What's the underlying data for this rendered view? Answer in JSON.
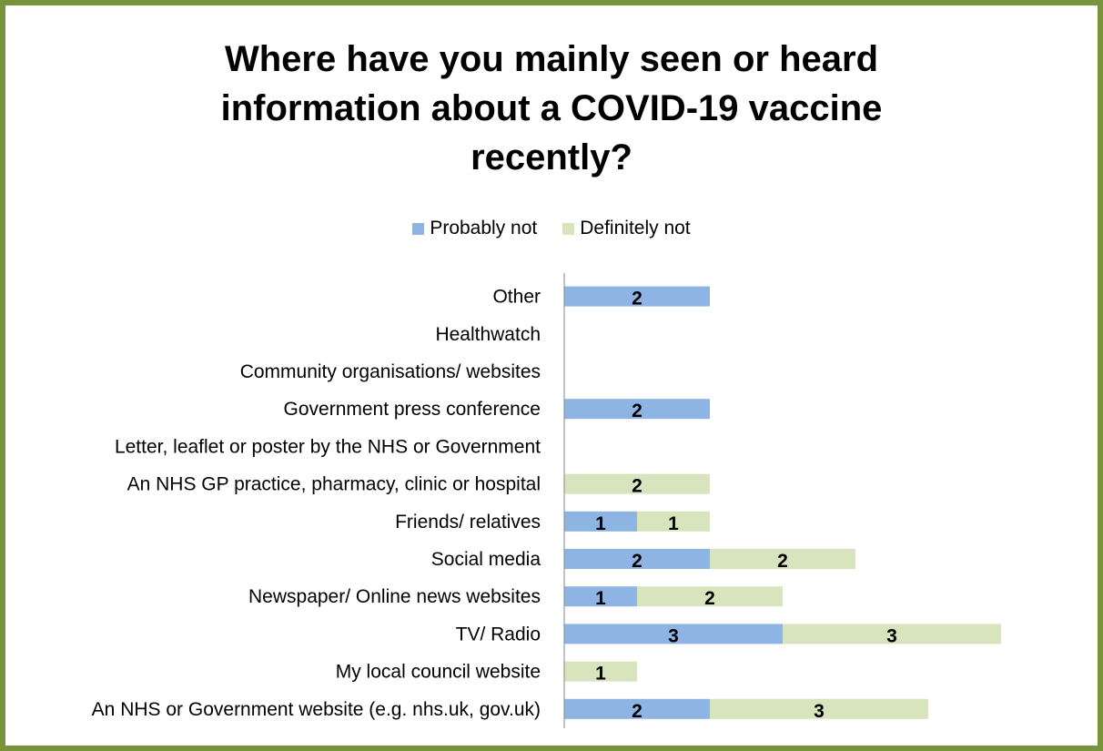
{
  "chart_data": {
    "type": "bar",
    "orientation": "horizontal",
    "stacked": true,
    "title_lines": [
      "Where have you mainly seen or heard",
      "information about a COVID-19 vaccine",
      "recently?"
    ],
    "legend_position": "top",
    "categories": [
      "Other",
      "Healthwatch",
      "Community organisations/ websites",
      "Government press conference",
      "Letter, leaflet or poster by the NHS or Government",
      "An NHS GP practice, pharmacy, clinic or hospital",
      "Friends/ relatives",
      "Social media",
      "Newspaper/ Online news websites",
      "TV/ Radio",
      "My local council website",
      "An NHS or Government website (e.g. nhs.uk, gov.uk)"
    ],
    "series": [
      {
        "name": "Probably not",
        "color": "#8eb4e3",
        "values": [
          2,
          0,
          0,
          2,
          0,
          0,
          1,
          2,
          1,
          3,
          0,
          2
        ]
      },
      {
        "name": "Definitely not",
        "color": "#d7e4bd",
        "values": [
          0,
          0,
          0,
          0,
          0,
          2,
          1,
          2,
          2,
          3,
          1,
          3
        ]
      }
    ],
    "gridlines": false
  }
}
